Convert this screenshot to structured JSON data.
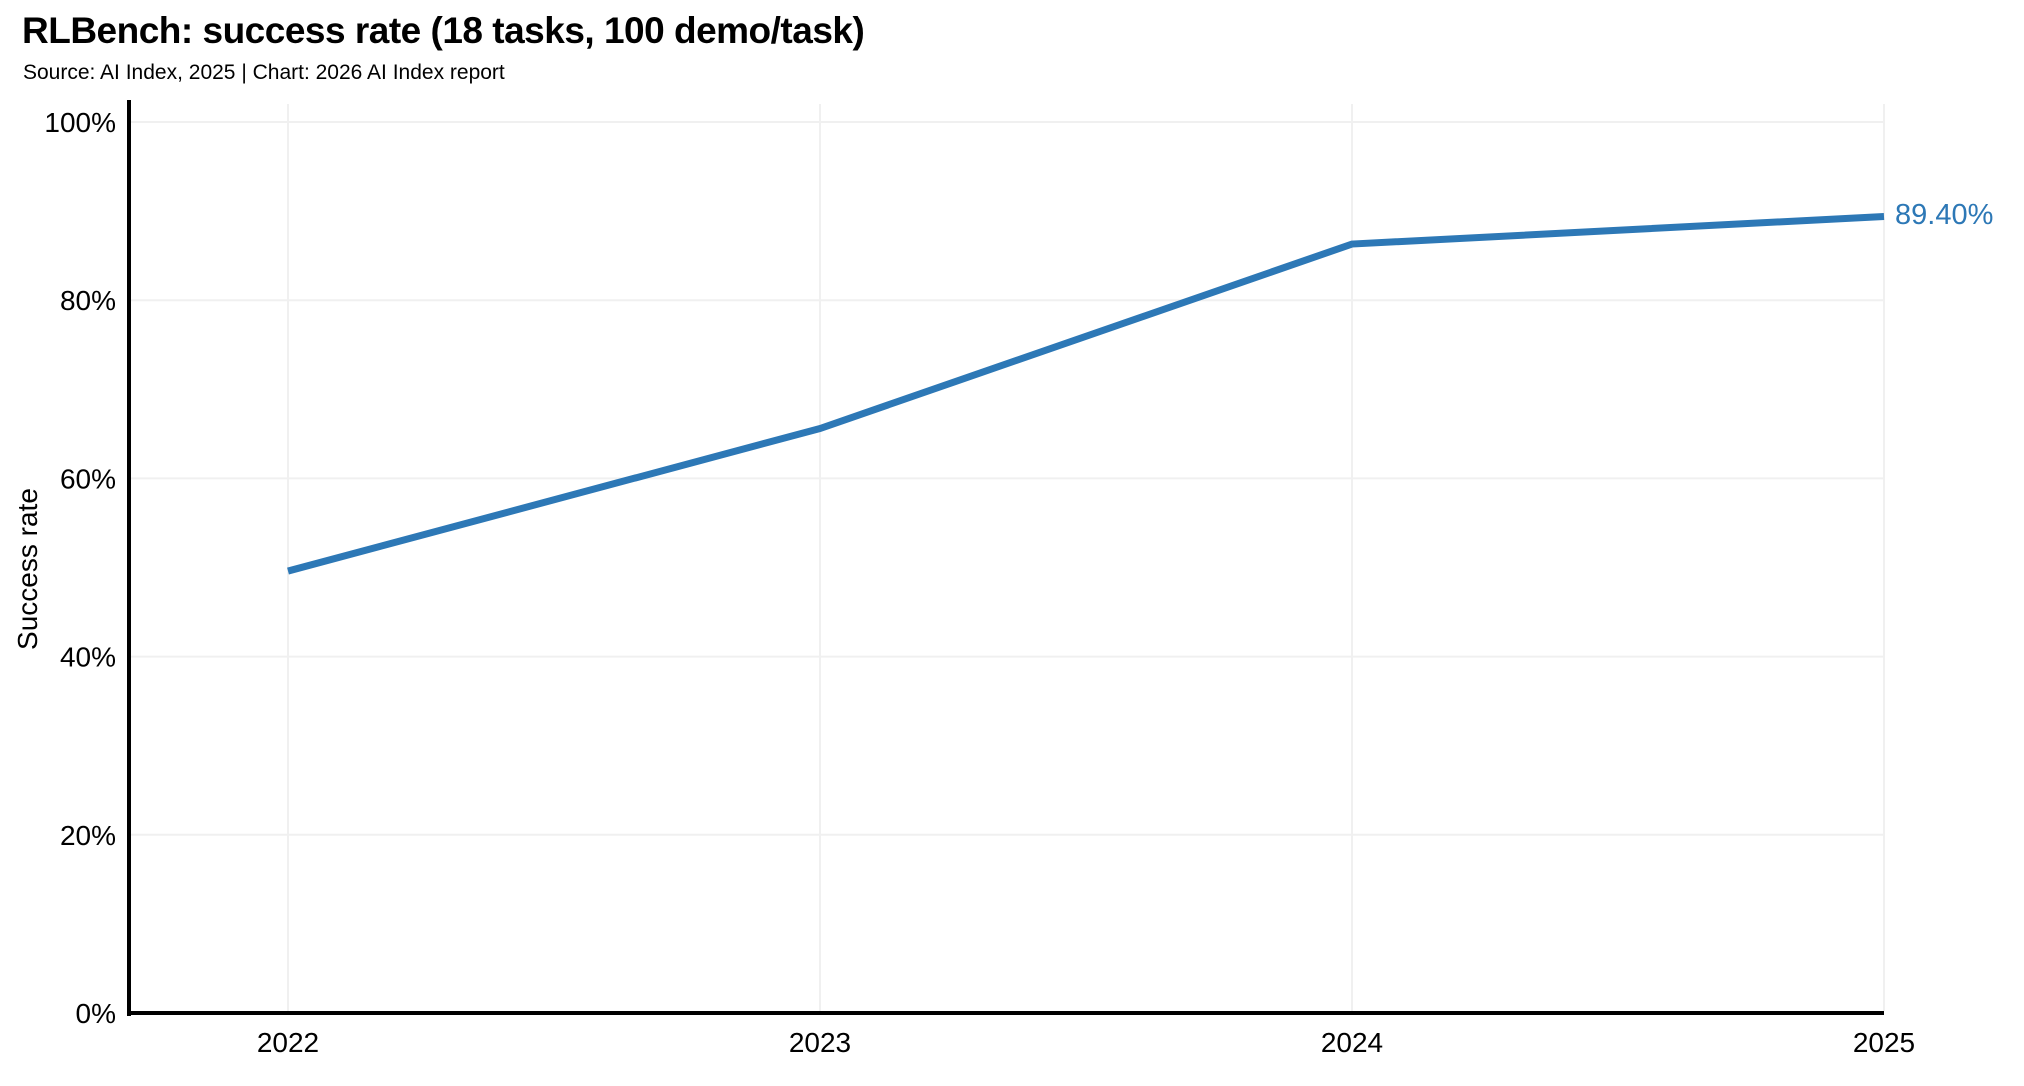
{
  "header": {
    "title": "RLBench: success rate (18 tasks, 100 demo/task)",
    "subtitle": "Source: AI Index, 2025 | Chart: 2026 AI Index report"
  },
  "chart_data": {
    "type": "line",
    "title": "RLBench: success rate (18 tasks, 100 demo/task)",
    "subtitle": "Source: AI Index, 2025 | Chart: 2026 AI Index report",
    "xlabel": "",
    "ylabel": "Success rate",
    "x": [
      2022,
      2023,
      2024,
      2025
    ],
    "xtick_labels": [
      "2022",
      "2023",
      "2024",
      "2025"
    ],
    "yticks": [
      0,
      20,
      40,
      60,
      80,
      100
    ],
    "ytick_labels": [
      "0%",
      "20%",
      "40%",
      "60%",
      "80%",
      "100%"
    ],
    "ylim": [
      0,
      100
    ],
    "grid": true,
    "legend": "none",
    "series": [
      {
        "name": "Success rate",
        "values": [
          49.6,
          65.6,
          86.3,
          89.4
        ]
      }
    ],
    "end_label": "89.40%",
    "colors": {
      "line": "#2d78b6",
      "end_label": "#2d78b6",
      "grid": "#f0f0f0",
      "axis": "#000000",
      "text": "#000000"
    }
  }
}
